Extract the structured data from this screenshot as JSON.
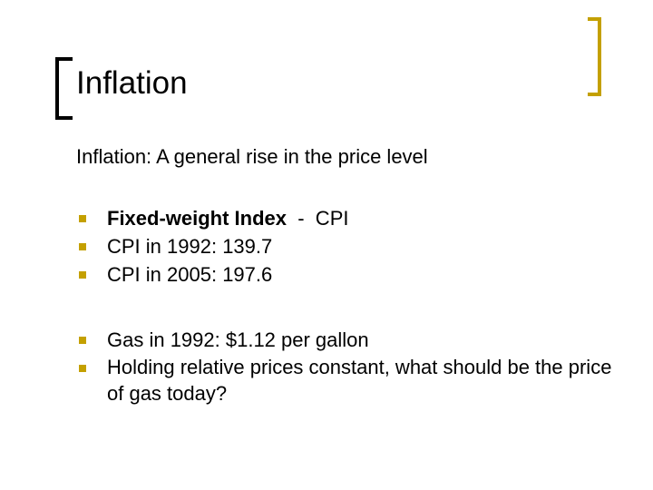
{
  "header": {
    "title": "Inflation"
  },
  "definition": "Inflation: A general rise in the price level",
  "groups": [
    {
      "bullets": [
        {
          "bold": "Fixed-weight Index",
          "text": "  -  CPI"
        },
        {
          "text": "CPI in 1992: 139.7"
        },
        {
          "text": "CPI in 2005: 197.6"
        }
      ]
    },
    {
      "bullets": [
        {
          "text": "Gas in 1992: $1.12 per gallon"
        },
        {
          "text": "Holding relative prices constant, what should be the price of gas today?"
        }
      ]
    }
  ]
}
